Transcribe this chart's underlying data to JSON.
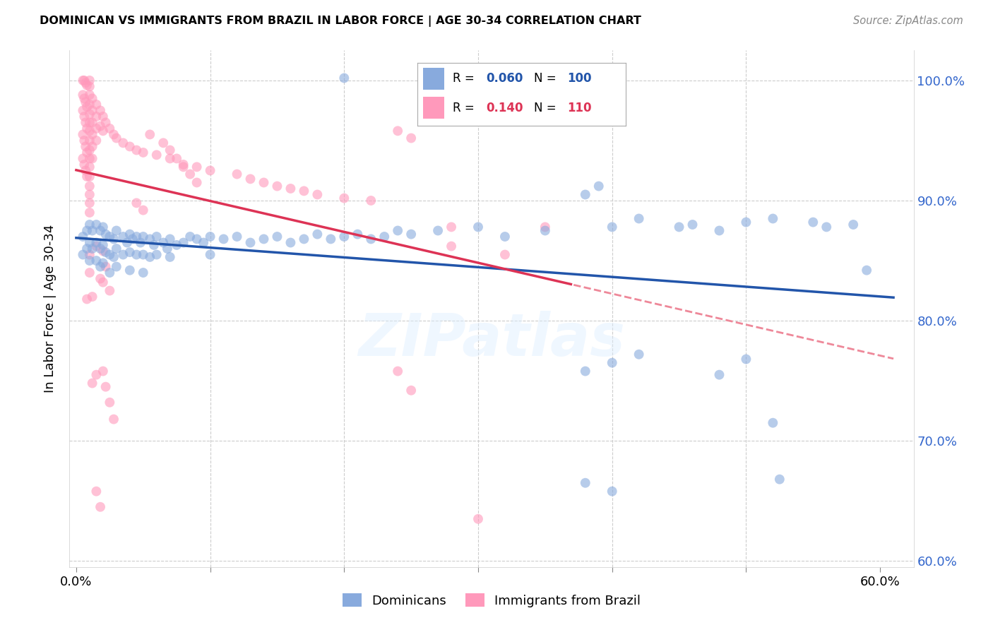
{
  "title": "DOMINICAN VS IMMIGRANTS FROM BRAZIL IN LABOR FORCE | AGE 30-34 CORRELATION CHART",
  "source": "Source: ZipAtlas.com",
  "ylabel": "In Labor Force | Age 30-34",
  "blue_R": 0.06,
  "blue_N": 100,
  "pink_R": 0.14,
  "pink_N": 110,
  "blue_color": "#88AADD",
  "pink_color": "#FF99BB",
  "blue_line_color": "#2255AA",
  "pink_line_color": "#DD3355",
  "pink_dash_color": "#EE8899",
  "xlim": [
    -0.005,
    0.625
  ],
  "ylim": [
    0.595,
    1.025
  ],
  "ytick_positions": [
    0.6,
    0.7,
    0.8,
    0.9,
    1.0
  ],
  "ytick_labels": [
    "60.0%",
    "70.0%",
    "80.0%",
    "90.0%",
    "100.0%"
  ],
  "blue_scatter": [
    [
      0.005,
      0.87
    ],
    [
      0.005,
      0.855
    ],
    [
      0.008,
      0.875
    ],
    [
      0.008,
      0.86
    ],
    [
      0.01,
      0.88
    ],
    [
      0.01,
      0.865
    ],
    [
      0.01,
      0.85
    ],
    [
      0.012,
      0.875
    ],
    [
      0.012,
      0.86
    ],
    [
      0.015,
      0.88
    ],
    [
      0.015,
      0.865
    ],
    [
      0.015,
      0.85
    ],
    [
      0.018,
      0.875
    ],
    [
      0.018,
      0.86
    ],
    [
      0.018,
      0.845
    ],
    [
      0.02,
      0.878
    ],
    [
      0.02,
      0.863
    ],
    [
      0.02,
      0.848
    ],
    [
      0.022,
      0.872
    ],
    [
      0.022,
      0.857
    ],
    [
      0.025,
      0.87
    ],
    [
      0.025,
      0.855
    ],
    [
      0.025,
      0.84
    ],
    [
      0.028,
      0.868
    ],
    [
      0.028,
      0.853
    ],
    [
      0.03,
      0.875
    ],
    [
      0.03,
      0.86
    ],
    [
      0.03,
      0.845
    ],
    [
      0.035,
      0.87
    ],
    [
      0.035,
      0.855
    ],
    [
      0.038,
      0.865
    ],
    [
      0.04,
      0.872
    ],
    [
      0.04,
      0.857
    ],
    [
      0.04,
      0.842
    ],
    [
      0.042,
      0.868
    ],
    [
      0.045,
      0.87
    ],
    [
      0.045,
      0.855
    ],
    [
      0.048,
      0.865
    ],
    [
      0.05,
      0.87
    ],
    [
      0.05,
      0.855
    ],
    [
      0.05,
      0.84
    ],
    [
      0.055,
      0.868
    ],
    [
      0.055,
      0.853
    ],
    [
      0.058,
      0.863
    ],
    [
      0.06,
      0.87
    ],
    [
      0.06,
      0.855
    ],
    [
      0.065,
      0.865
    ],
    [
      0.068,
      0.86
    ],
    [
      0.07,
      0.868
    ],
    [
      0.07,
      0.853
    ],
    [
      0.075,
      0.863
    ],
    [
      0.08,
      0.865
    ],
    [
      0.085,
      0.87
    ],
    [
      0.09,
      0.868
    ],
    [
      0.095,
      0.865
    ],
    [
      0.1,
      0.87
    ],
    [
      0.1,
      0.855
    ],
    [
      0.11,
      0.868
    ],
    [
      0.12,
      0.87
    ],
    [
      0.13,
      0.865
    ],
    [
      0.14,
      0.868
    ],
    [
      0.15,
      0.87
    ],
    [
      0.16,
      0.865
    ],
    [
      0.17,
      0.868
    ],
    [
      0.18,
      0.872
    ],
    [
      0.19,
      0.868
    ],
    [
      0.2,
      0.87
    ],
    [
      0.21,
      0.872
    ],
    [
      0.22,
      0.868
    ],
    [
      0.23,
      0.87
    ],
    [
      0.24,
      0.875
    ],
    [
      0.25,
      0.872
    ],
    [
      0.27,
      0.875
    ],
    [
      0.3,
      0.878
    ],
    [
      0.32,
      0.87
    ],
    [
      0.35,
      0.875
    ],
    [
      0.38,
      0.905
    ],
    [
      0.39,
      0.912
    ],
    [
      0.4,
      0.878
    ],
    [
      0.42,
      0.885
    ],
    [
      0.45,
      0.878
    ],
    [
      0.46,
      0.88
    ],
    [
      0.48,
      0.875
    ],
    [
      0.5,
      0.882
    ],
    [
      0.52,
      0.885
    ],
    [
      0.55,
      0.882
    ],
    [
      0.56,
      0.878
    ],
    [
      0.58,
      0.88
    ],
    [
      0.59,
      0.842
    ],
    [
      0.2,
      1.002
    ],
    [
      0.38,
      0.758
    ],
    [
      0.4,
      0.765
    ],
    [
      0.42,
      0.772
    ],
    [
      0.48,
      0.755
    ],
    [
      0.5,
      0.768
    ],
    [
      0.38,
      0.665
    ],
    [
      0.4,
      0.658
    ],
    [
      0.52,
      0.715
    ],
    [
      0.525,
      0.668
    ]
  ],
  "pink_scatter": [
    [
      0.005,
      1.0
    ],
    [
      0.006,
      1.0
    ],
    [
      0.007,
      0.998
    ],
    [
      0.008,
      0.996
    ],
    [
      0.005,
      0.988
    ],
    [
      0.006,
      0.985
    ],
    [
      0.007,
      0.982
    ],
    [
      0.008,
      0.978
    ],
    [
      0.005,
      0.975
    ],
    [
      0.006,
      0.97
    ],
    [
      0.007,
      0.965
    ],
    [
      0.008,
      0.96
    ],
    [
      0.005,
      0.955
    ],
    [
      0.006,
      0.95
    ],
    [
      0.007,
      0.945
    ],
    [
      0.008,
      0.94
    ],
    [
      0.005,
      0.935
    ],
    [
      0.006,
      0.93
    ],
    [
      0.007,
      0.925
    ],
    [
      0.008,
      0.92
    ],
    [
      0.01,
      1.0
    ],
    [
      0.01,
      0.995
    ],
    [
      0.01,
      0.988
    ],
    [
      0.01,
      0.98
    ],
    [
      0.01,
      0.972
    ],
    [
      0.01,
      0.965
    ],
    [
      0.01,
      0.958
    ],
    [
      0.01,
      0.95
    ],
    [
      0.01,
      0.942
    ],
    [
      0.01,
      0.935
    ],
    [
      0.01,
      0.928
    ],
    [
      0.01,
      0.92
    ],
    [
      0.01,
      0.912
    ],
    [
      0.01,
      0.905
    ],
    [
      0.01,
      0.898
    ],
    [
      0.01,
      0.89
    ],
    [
      0.012,
      0.985
    ],
    [
      0.012,
      0.975
    ],
    [
      0.012,
      0.965
    ],
    [
      0.012,
      0.955
    ],
    [
      0.012,
      0.945
    ],
    [
      0.012,
      0.935
    ],
    [
      0.015,
      0.98
    ],
    [
      0.015,
      0.97
    ],
    [
      0.015,
      0.96
    ],
    [
      0.015,
      0.95
    ],
    [
      0.018,
      0.975
    ],
    [
      0.018,
      0.962
    ],
    [
      0.02,
      0.97
    ],
    [
      0.02,
      0.958
    ],
    [
      0.022,
      0.965
    ],
    [
      0.025,
      0.96
    ],
    [
      0.028,
      0.955
    ],
    [
      0.03,
      0.952
    ],
    [
      0.035,
      0.948
    ],
    [
      0.04,
      0.945
    ],
    [
      0.045,
      0.942
    ],
    [
      0.05,
      0.94
    ],
    [
      0.06,
      0.938
    ],
    [
      0.07,
      0.935
    ],
    [
      0.08,
      0.93
    ],
    [
      0.09,
      0.928
    ],
    [
      0.1,
      0.925
    ],
    [
      0.12,
      0.922
    ],
    [
      0.13,
      0.918
    ],
    [
      0.14,
      0.915
    ],
    [
      0.15,
      0.912
    ],
    [
      0.16,
      0.91
    ],
    [
      0.17,
      0.908
    ],
    [
      0.18,
      0.905
    ],
    [
      0.2,
      0.902
    ],
    [
      0.22,
      0.9
    ],
    [
      0.24,
      0.958
    ],
    [
      0.25,
      0.952
    ],
    [
      0.01,
      0.855
    ],
    [
      0.01,
      0.84
    ],
    [
      0.015,
      0.862
    ],
    [
      0.018,
      0.835
    ],
    [
      0.02,
      0.858
    ],
    [
      0.02,
      0.832
    ],
    [
      0.022,
      0.845
    ],
    [
      0.025,
      0.825
    ],
    [
      0.28,
      0.878
    ],
    [
      0.28,
      0.862
    ],
    [
      0.24,
      0.758
    ],
    [
      0.25,
      0.742
    ],
    [
      0.32,
      0.855
    ],
    [
      0.3,
      0.635
    ],
    [
      0.35,
      0.878
    ],
    [
      0.02,
      0.758
    ],
    [
      0.022,
      0.745
    ],
    [
      0.025,
      0.732
    ],
    [
      0.028,
      0.718
    ],
    [
      0.015,
      0.755
    ],
    [
      0.015,
      0.658
    ],
    [
      0.018,
      0.645
    ],
    [
      0.012,
      0.748
    ],
    [
      0.012,
      0.82
    ],
    [
      0.008,
      0.818
    ],
    [
      0.045,
      0.898
    ],
    [
      0.05,
      0.892
    ],
    [
      0.055,
      0.955
    ],
    [
      0.065,
      0.948
    ],
    [
      0.07,
      0.942
    ],
    [
      0.075,
      0.935
    ],
    [
      0.08,
      0.928
    ],
    [
      0.085,
      0.922
    ],
    [
      0.09,
      0.915
    ]
  ]
}
